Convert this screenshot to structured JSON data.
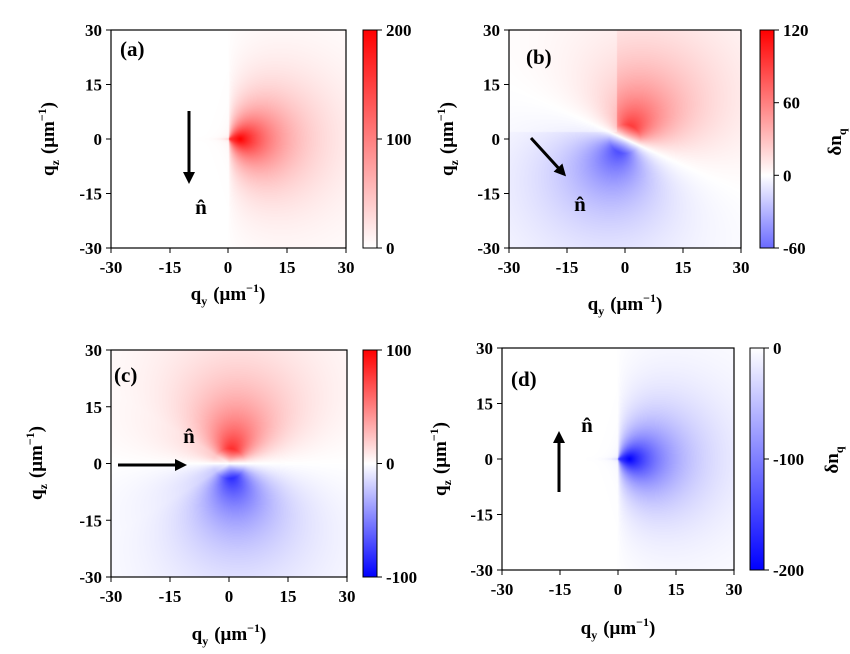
{
  "colors": {
    "positive": "#ff0000",
    "negative": "#0000ff",
    "neutral": "#ffffff",
    "arrow": "#000000"
  },
  "chart_data": [
    {
      "type": "heatmap",
      "panel_label": "(a)",
      "xlabel_main": "q",
      "xlabel_sub": "y",
      "xlabel_unit": "(μm",
      "xlabel_exp": "−1",
      "xlabel_close": ")",
      "ylabel_main": "q",
      "ylabel_sub": "z",
      "ylabel_unit": "(μm",
      "ylabel_exp": "−1",
      "ylabel_close": ")",
      "xlim": [
        -30,
        30
      ],
      "ylim": [
        -30,
        30
      ],
      "xticks": [
        "-30",
        "-15",
        "0",
        "15",
        "30"
      ],
      "yticks": [
        "30",
        "15",
        "0",
        "-15",
        "-30"
      ],
      "colorbar": {
        "min": 0,
        "max": 200,
        "ticks": [
          "200",
          "100",
          "0"
        ],
        "label": ""
      },
      "colormap": "white-red",
      "director_label": "n̂",
      "director_direction": "down",
      "field": {
        "kind": "monopole",
        "peak_value": 200,
        "peak_location": [
          3,
          0
        ]
      }
    },
    {
      "type": "heatmap",
      "panel_label": "(b)",
      "xlabel_main": "q",
      "xlabel_sub": "y",
      "xlabel_unit": "(μm",
      "xlabel_exp": "−1",
      "xlabel_close": ")",
      "ylabel_main": "q",
      "ylabel_sub": "z",
      "ylabel_unit": "(μm",
      "ylabel_exp": "−1",
      "ylabel_close": ")",
      "xlim": [
        -30,
        30
      ],
      "ylim": [
        -30,
        30
      ],
      "xticks": [
        "-30",
        "-15",
        "0",
        "15",
        "30"
      ],
      "yticks": [
        "30",
        "15",
        "0",
        "-15",
        "-30"
      ],
      "colorbar": {
        "min": -60,
        "max": 120,
        "ticks": [
          "120",
          "60",
          "0",
          "-60"
        ],
        "label_main": "δn",
        "label_sub": "q"
      },
      "colormap": "blue-white-red",
      "director_label": "n̂",
      "director_direction": "down-right",
      "field": {
        "kind": "dipole-tilted",
        "peak_value": 120,
        "min_value": -60
      }
    },
    {
      "type": "heatmap",
      "panel_label": "(c)",
      "xlabel_main": "q",
      "xlabel_sub": "y",
      "xlabel_unit": "(μm",
      "xlabel_exp": "−1",
      "xlabel_close": ")",
      "ylabel_main": "q",
      "ylabel_sub": "z",
      "ylabel_unit": "(μm",
      "ylabel_exp": "−1",
      "ylabel_close": ")",
      "xlim": [
        -30,
        30
      ],
      "ylim": [
        -30,
        30
      ],
      "xticks": [
        "-30",
        "-15",
        "0",
        "15",
        "30"
      ],
      "yticks": [
        "30",
        "15",
        "0",
        "-15",
        "-30"
      ],
      "colorbar": {
        "min": -100,
        "max": 100,
        "ticks": [
          "100",
          "0",
          "-100"
        ],
        "label": ""
      },
      "colormap": "blue-white-red",
      "director_label": "n̂",
      "director_direction": "right",
      "field": {
        "kind": "dipole-horizontal",
        "peak_value": 100,
        "min_value": -100
      }
    },
    {
      "type": "heatmap",
      "panel_label": "(d)",
      "xlabel_main": "q",
      "xlabel_sub": "y",
      "xlabel_unit": "(μm",
      "xlabel_exp": "−1",
      "xlabel_close": ")",
      "ylabel_main": "q",
      "ylabel_sub": "z",
      "ylabel_unit": "(μm",
      "ylabel_exp": "−1",
      "ylabel_close": ")",
      "xlim": [
        -30,
        30
      ],
      "ylim": [
        -30,
        30
      ],
      "xticks": [
        "-30",
        "-15",
        "0",
        "15",
        "30"
      ],
      "yticks": [
        "30",
        "15",
        "0",
        "-15",
        "-30"
      ],
      "colorbar": {
        "min": -200,
        "max": 0,
        "ticks": [
          "0",
          "-100",
          "-200"
        ],
        "label_main": "δn",
        "label_sub": "q"
      },
      "colormap": "blue-white",
      "director_label": "n̂",
      "director_direction": "up",
      "field": {
        "kind": "monopole",
        "peak_value": -200,
        "peak_location": [
          3,
          0
        ]
      }
    }
  ]
}
